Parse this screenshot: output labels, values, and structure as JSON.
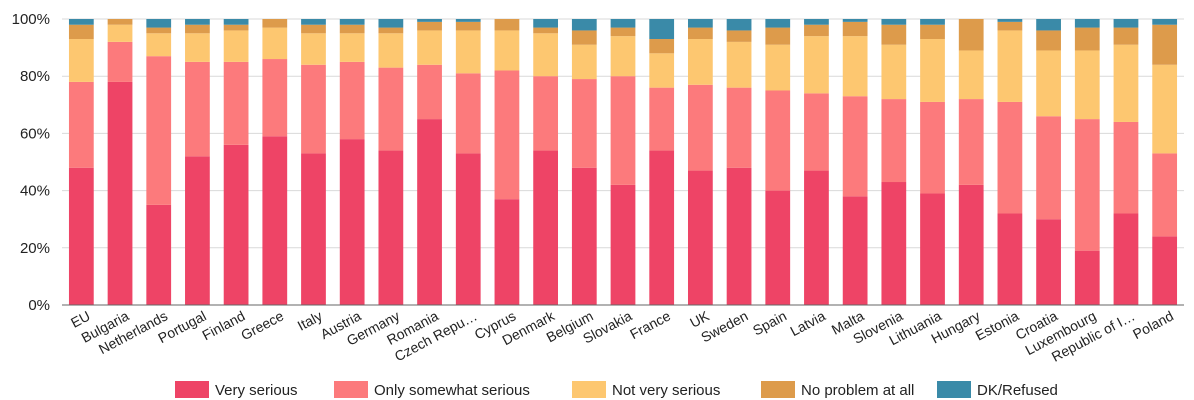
{
  "chart_data": {
    "type": "bar",
    "stacked": true,
    "orientation": "vertical",
    "y_unit": "%",
    "ylim": [
      0,
      100
    ],
    "y_ticks": [
      "0%",
      "20%",
      "40%",
      "60%",
      "80%",
      "100%"
    ],
    "grid": true,
    "legend_position": "bottom",
    "categories": [
      "EU",
      "Bulgaria",
      "Netherlands",
      "Portugal",
      "Finland",
      "Greece",
      "Italy",
      "Austria",
      "Germany",
      "Romania",
      "Czech Repu…",
      "Cyprus",
      "Denmark",
      "Belgium",
      "Slovakia",
      "France",
      "UK",
      "Sweden",
      "Spain",
      "Latvia",
      "Malta",
      "Slovenia",
      "Lithuania",
      "Hungary",
      "Estonia",
      "Croatia",
      "Luxembourg",
      "Republic of I…",
      "Poland"
    ],
    "series": [
      {
        "name": "Very serious",
        "color": "#ee4466",
        "values": [
          48,
          78,
          35,
          52,
          56,
          59,
          53,
          58,
          54,
          65,
          53,
          37,
          54,
          48,
          42,
          54,
          47,
          48,
          40,
          47,
          38,
          43,
          39,
          42,
          32,
          30,
          19,
          32,
          24
        ]
      },
      {
        "name": "Only somewhat serious",
        "color": "#fc7a7c",
        "values": [
          30,
          14,
          52,
          33,
          29,
          27,
          31,
          27,
          29,
          19,
          28,
          45,
          26,
          31,
          38,
          22,
          30,
          28,
          35,
          27,
          35,
          29,
          32,
          30,
          39,
          36,
          46,
          32,
          29
        ]
      },
      {
        "name": "Not very serious",
        "color": "#fdc770",
        "values": [
          15,
          6,
          8,
          10,
          11,
          11,
          11,
          10,
          12,
          12,
          15,
          14,
          15,
          12,
          14,
          12,
          16,
          16,
          16,
          20,
          21,
          19,
          22,
          17,
          25,
          23,
          24,
          27,
          31
        ]
      },
      {
        "name": "No problem at all",
        "color": "#dd9b4b",
        "values": [
          5,
          2,
          2,
          3,
          2,
          3,
          3,
          3,
          2,
          3,
          3,
          4,
          2,
          5,
          3,
          5,
          4,
          4,
          6,
          4,
          5,
          7,
          5,
          11,
          3,
          7,
          8,
          6,
          14
        ]
      },
      {
        "name": "DK/Refused",
        "color": "#3a8aa8",
        "values": [
          2,
          0,
          3,
          2,
          2,
          0,
          2,
          2,
          3,
          1,
          1,
          0,
          3,
          4,
          3,
          7,
          3,
          4,
          3,
          2,
          1,
          2,
          2,
          0,
          1,
          4,
          3,
          3,
          2
        ]
      }
    ]
  }
}
